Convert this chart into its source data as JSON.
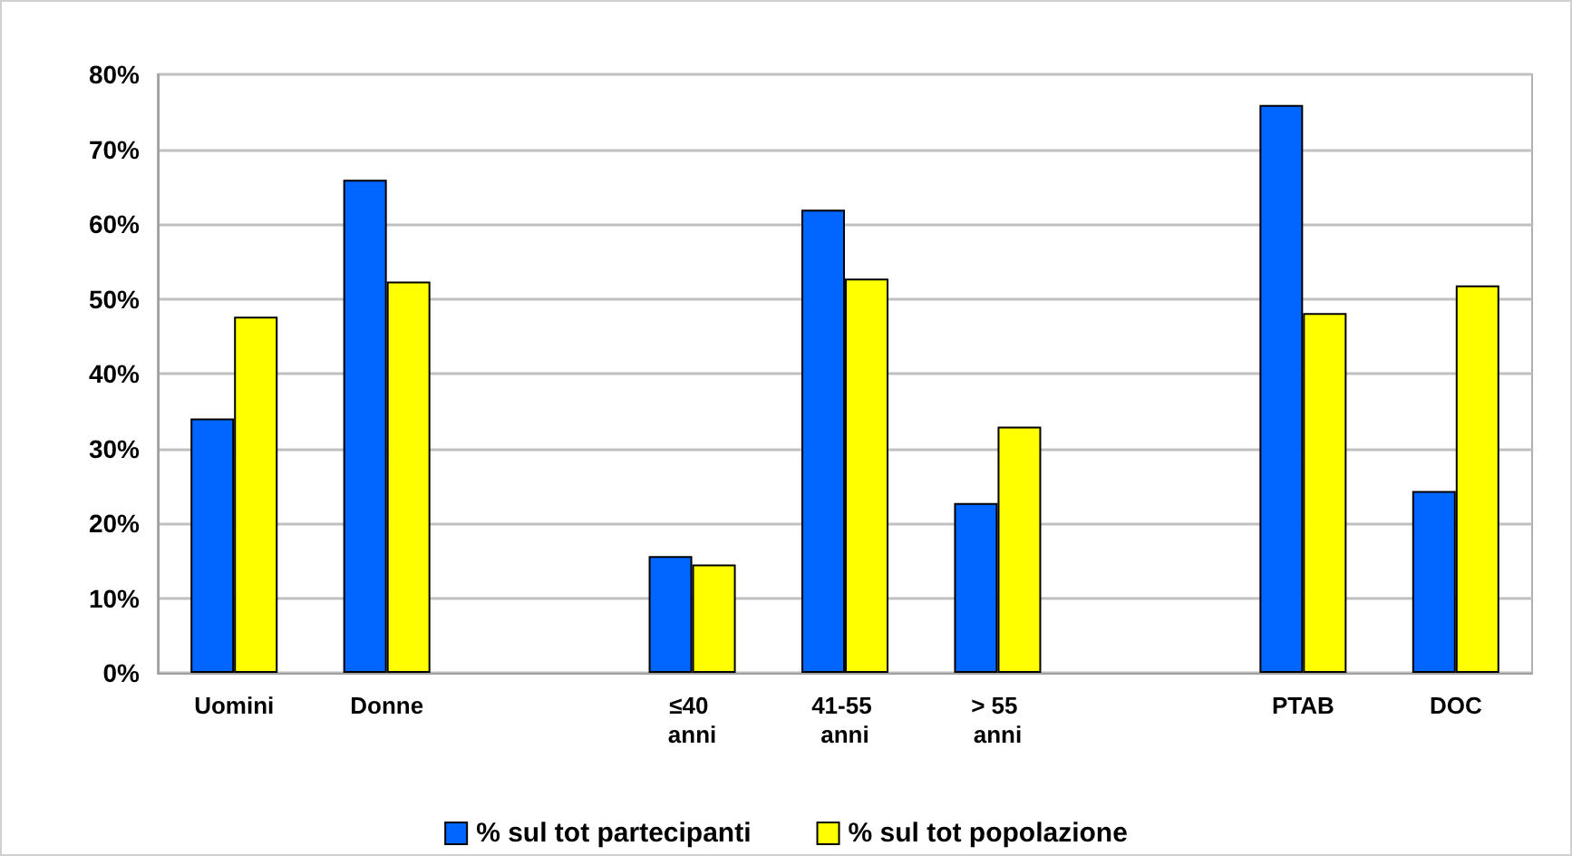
{
  "chart_data": {
    "type": "bar",
    "categories": [
      "Uomini",
      "Donne",
      null,
      "≤40 anni",
      "41-55 anni",
      "> 55 anni",
      null,
      "PTAB",
      "DOC"
    ],
    "series": [
      {
        "name": "% sul tot partecipanti",
        "color": "#0066ff",
        "values": [
          34.0,
          65.9,
          null,
          15.6,
          61.9,
          22.7,
          null,
          75.9,
          24.3
        ]
      },
      {
        "name": "% sul tot popolazione",
        "color": "#ffff00",
        "values": [
          47.6,
          52.3,
          null,
          14.5,
          52.7,
          32.9,
          null,
          48.1,
          51.8
        ]
      }
    ],
    "ylim": [
      0,
      80
    ],
    "yticks": [
      {
        "value": 0,
        "label": "0%"
      },
      {
        "value": 10,
        "label": "10%"
      },
      {
        "value": 20,
        "label": "20%"
      },
      {
        "value": 30,
        "label": "30%"
      },
      {
        "value": 40,
        "label": "40%"
      },
      {
        "value": 50,
        "label": "50%"
      },
      {
        "value": 60,
        "label": "60%"
      },
      {
        "value": 70,
        "label": "70%"
      },
      {
        "value": 80,
        "label": "80%"
      }
    ],
    "grid": "y",
    "legend": "bottom"
  }
}
